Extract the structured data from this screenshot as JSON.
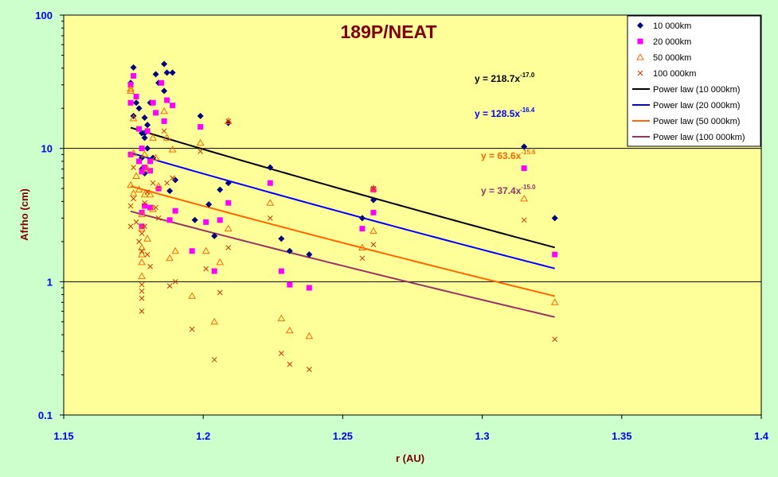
{
  "chart_data": {
    "type": "scatter",
    "title": "189P/NEAT",
    "xlabel": "r (AU)",
    "ylabel": "Afrho (cm)",
    "x_scale": "linear",
    "y_scale": "log",
    "xlim": [
      1.15,
      1.4
    ],
    "ylim": [
      0.1,
      100
    ],
    "x_ticks": [
      "1.15",
      "1.2",
      "1.25",
      "1.3",
      "1.35",
      "1.4"
    ],
    "y_ticks": [
      "0.1",
      "1",
      "10",
      "100"
    ],
    "legend_position": "top-right",
    "colors": {
      "plot_area": "#ffff99",
      "background": "#ccffcc",
      "title": "#800000",
      "axis_label": "#800000",
      "tick_label": "#0000ff"
    },
    "series": [
      {
        "name": "10 000km",
        "marker": "diamond",
        "color": "#000080",
        "points": [
          [
            1.174,
            31
          ],
          [
            1.175,
            17.5
          ],
          [
            1.175,
            40.5
          ],
          [
            1.176,
            22
          ],
          [
            1.177,
            20
          ],
          [
            1.178,
            13
          ],
          [
            1.178,
            8.5
          ],
          [
            1.178,
            7
          ],
          [
            1.179,
            6.5
          ],
          [
            1.179,
            17
          ],
          [
            1.179,
            13
          ],
          [
            1.179,
            12
          ],
          [
            1.18,
            15
          ],
          [
            1.18,
            10
          ],
          [
            1.181,
            22
          ],
          [
            1.182,
            8.5
          ],
          [
            1.183,
            36
          ],
          [
            1.184,
            31
          ],
          [
            1.186,
            43
          ],
          [
            1.186,
            27
          ],
          [
            1.187,
            37
          ],
          [
            1.188,
            4.8
          ],
          [
            1.189,
            37
          ],
          [
            1.19,
            5.8
          ],
          [
            1.197,
            2.9
          ],
          [
            1.199,
            17.5
          ],
          [
            1.202,
            3.8
          ],
          [
            1.204,
            2.2
          ],
          [
            1.206,
            4.9
          ],
          [
            1.209,
            5.5
          ],
          [
            1.209,
            15.5
          ],
          [
            1.224,
            7.2
          ],
          [
            1.228,
            2.1
          ],
          [
            1.231,
            1.7
          ],
          [
            1.238,
            1.6
          ],
          [
            1.257,
            3
          ],
          [
            1.261,
            4.1
          ],
          [
            1.261,
            5
          ],
          [
            1.315,
            10.3
          ],
          [
            1.326,
            3
          ]
        ]
      },
      {
        "name": "20 000km",
        "marker": "square",
        "color": "#ff00ff",
        "points": [
          [
            1.174,
            30
          ],
          [
            1.174,
            22
          ],
          [
            1.174,
            9
          ],
          [
            1.175,
            35
          ],
          [
            1.176,
            24.5
          ],
          [
            1.177,
            14
          ],
          [
            1.177,
            8
          ],
          [
            1.178,
            10
          ],
          [
            1.178,
            6.7
          ],
          [
            1.178,
            3.3
          ],
          [
            1.178,
            2.6
          ],
          [
            1.179,
            7.2
          ],
          [
            1.179,
            3.7
          ],
          [
            1.18,
            13.5
          ],
          [
            1.181,
            8
          ],
          [
            1.181,
            6.8
          ],
          [
            1.181,
            3.6
          ],
          [
            1.182,
            22
          ],
          [
            1.183,
            18.5
          ],
          [
            1.184,
            5
          ],
          [
            1.185,
            31
          ],
          [
            1.186,
            16
          ],
          [
            1.187,
            23
          ],
          [
            1.188,
            2.9
          ],
          [
            1.189,
            21
          ],
          [
            1.19,
            3.4
          ],
          [
            1.196,
            1.7
          ],
          [
            1.199,
            14.5
          ],
          [
            1.201,
            2.8
          ],
          [
            1.204,
            1.2
          ],
          [
            1.206,
            2.9
          ],
          [
            1.209,
            3.9
          ],
          [
            1.224,
            5.5
          ],
          [
            1.228,
            1.2
          ],
          [
            1.231,
            0.95
          ],
          [
            1.238,
            0.9
          ],
          [
            1.257,
            2.5
          ],
          [
            1.261,
            3.3
          ],
          [
            1.261,
            4.9
          ],
          [
            1.315,
            7.1
          ],
          [
            1.326,
            1.6
          ]
        ]
      },
      {
        "name": "50 000km",
        "marker": "triangle",
        "color": "#ff6600",
        "points": [
          [
            1.174,
            28
          ],
          [
            1.174,
            27
          ],
          [
            1.174,
            5.3
          ],
          [
            1.175,
            16.8
          ],
          [
            1.175,
            9.2
          ],
          [
            1.175,
            4.6
          ],
          [
            1.176,
            6.2
          ],
          [
            1.177,
            4.9
          ],
          [
            1.178,
            3.2
          ],
          [
            1.178,
            2.5
          ],
          [
            1.178,
            1.8
          ],
          [
            1.178,
            1.6
          ],
          [
            1.178,
            1.4
          ],
          [
            1.178,
            1.1
          ],
          [
            1.179,
            9
          ],
          [
            1.179,
            4.5
          ],
          [
            1.18,
            7
          ],
          [
            1.18,
            2.1
          ],
          [
            1.181,
            4.5
          ],
          [
            1.182,
            3.5
          ],
          [
            1.182,
            12
          ],
          [
            1.183,
            8.5
          ],
          [
            1.184,
            5.2
          ],
          [
            1.186,
            19
          ],
          [
            1.187,
            12
          ],
          [
            1.188,
            1.5
          ],
          [
            1.189,
            9.8
          ],
          [
            1.19,
            1.7
          ],
          [
            1.196,
            0.78
          ],
          [
            1.199,
            11
          ],
          [
            1.201,
            1.7
          ],
          [
            1.204,
            0.5
          ],
          [
            1.206,
            1.4
          ],
          [
            1.209,
            2.5
          ],
          [
            1.209,
            16
          ],
          [
            1.224,
            3.9
          ],
          [
            1.228,
            0.53
          ],
          [
            1.231,
            0.43
          ],
          [
            1.238,
            0.39
          ],
          [
            1.257,
            1.8
          ],
          [
            1.261,
            2.4
          ],
          [
            1.261,
            5
          ],
          [
            1.315,
            4.2
          ],
          [
            1.326,
            0.7
          ]
        ]
      },
      {
        "name": "100 000km",
        "marker": "cross",
        "color": "#cc3300",
        "points": [
          [
            1.174,
            3.7
          ],
          [
            1.174,
            2.6
          ],
          [
            1.175,
            7.2
          ],
          [
            1.175,
            4.2
          ],
          [
            1.176,
            2.8
          ],
          [
            1.177,
            2
          ],
          [
            1.178,
            2.3
          ],
          [
            1.178,
            1.7
          ],
          [
            1.178,
            0.95
          ],
          [
            1.178,
            0.85
          ],
          [
            1.178,
            0.75
          ],
          [
            1.178,
            0.6
          ],
          [
            1.179,
            3.9
          ],
          [
            1.179,
            2.6
          ],
          [
            1.18,
            4.7
          ],
          [
            1.18,
            1.6
          ],
          [
            1.181,
            1.3
          ],
          [
            1.182,
            5.5
          ],
          [
            1.183,
            3.6
          ],
          [
            1.184,
            3
          ],
          [
            1.186,
            13.5
          ],
          [
            1.187,
            5.5
          ],
          [
            1.188,
            0.93
          ],
          [
            1.189,
            6
          ],
          [
            1.19,
            1
          ],
          [
            1.196,
            0.44
          ],
          [
            1.199,
            9.5
          ],
          [
            1.201,
            1.25
          ],
          [
            1.204,
            0.26
          ],
          [
            1.206,
            0.83
          ],
          [
            1.209,
            1.8
          ],
          [
            1.209,
            16
          ],
          [
            1.224,
            3
          ],
          [
            1.228,
            0.29
          ],
          [
            1.231,
            0.24
          ],
          [
            1.238,
            0.22
          ],
          [
            1.257,
            1.5
          ],
          [
            1.261,
            1.9
          ],
          [
            1.261,
            5
          ],
          [
            1.315,
            2.9
          ],
          [
            1.326,
            0.37
          ]
        ]
      }
    ],
    "fits": [
      {
        "name": "Power law (10 000km)",
        "color": "#000000",
        "a": 218.7,
        "b": -17.0,
        "x_range": [
          1.174,
          1.326
        ],
        "label": "y = 218.7x",
        "exponent": "-17.0"
      },
      {
        "name": "Power law (20 000km)",
        "color": "#0000ff",
        "a": 128.5,
        "b": -16.4,
        "x_range": [
          1.174,
          1.326
        ],
        "label": "y = 128.5x",
        "exponent": "-16.4"
      },
      {
        "name": "Power law (50 000km)",
        "color": "#ff6600",
        "a": 63.6,
        "b": -15.6,
        "x_range": [
          1.174,
          1.326
        ],
        "label": "y = 63.6x",
        "exponent": "-15.6"
      },
      {
        "name": "Power law (100 000km)",
        "color": "#993366",
        "a": 37.4,
        "b": -15.0,
        "x_range": [
          1.174,
          1.326
        ],
        "label": "y = 37.4x",
        "exponent": "-15.0"
      }
    ]
  }
}
